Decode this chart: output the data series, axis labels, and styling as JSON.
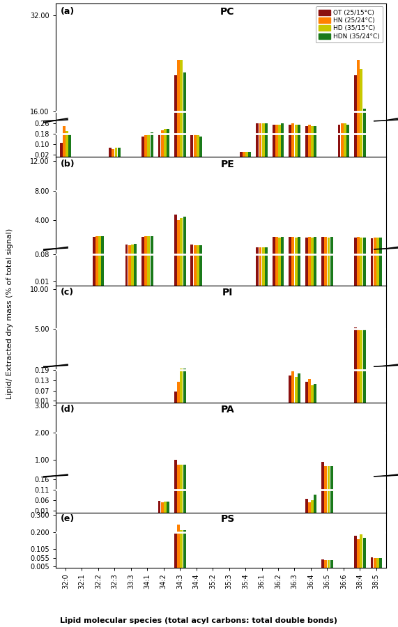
{
  "categories": [
    "32:0",
    "32:1",
    "32:2",
    "32:3",
    "33:3",
    "34:1",
    "34:2",
    "34:3",
    "34:4",
    "35:2",
    "35:3",
    "35:4",
    "36:1",
    "36:2",
    "36:3",
    "36:4",
    "36:5",
    "36:6",
    "38:4",
    "38:5"
  ],
  "colors": [
    "#8B1010",
    "#FF8000",
    "#C8C800",
    "#1A7A1A"
  ],
  "legend_labels": [
    "OT (25/15°C)",
    "HN (25/24°C)",
    "HD (35/15°C)",
    "HDN (35/24°C)"
  ],
  "xlabel": "Lipid molecular species (total acyl carbons: total double bonds)",
  "ylabel": "Lipid/ Extracted dry mass (% of total signal)",
  "panels": [
    {
      "label": "(a)",
      "title": "PC",
      "vals": {
        "32:0": [
          0.11,
          0.24,
          0.2,
          0.18
        ],
        "32:1": [
          0.0,
          0.0,
          0.0,
          0.0
        ],
        "32:2": [
          0.0,
          0.0,
          0.0,
          0.0
        ],
        "32:3": [
          0.07,
          0.06,
          0.07,
          0.07
        ],
        "33:3": [
          0.0,
          0.0,
          0.0,
          0.0
        ],
        "34:1": [
          0.16,
          0.17,
          0.18,
          0.19
        ],
        "34:2": [
          0.18,
          0.21,
          0.22,
          0.22
        ],
        "34:3": [
          22.0,
          24.5,
          24.5,
          22.5
        ],
        "34:4": [
          0.17,
          0.18,
          0.17,
          0.16
        ],
        "35:2": [
          0.0,
          0.0,
          0.0,
          0.0
        ],
        "35:3": [
          0.0,
          0.0,
          0.0,
          0.0
        ],
        "35:4": [
          0.04,
          0.04,
          0.04,
          0.04
        ],
        "36:1": [
          0.26,
          0.26,
          0.26,
          0.26
        ],
        "36:2": [
          0.25,
          0.25,
          0.25,
          0.26
        ],
        "36:3": [
          0.25,
          0.26,
          0.25,
          0.25
        ],
        "36:4": [
          0.24,
          0.25,
          0.24,
          0.24
        ],
        "36:5": [
          0.0,
          0.0,
          0.0,
          0.0
        ],
        "36:6": [
          0.25,
          0.26,
          0.26,
          0.25
        ],
        "38:4": [
          22.0,
          24.5,
          23.0,
          16.5
        ],
        "38:5": [
          0.0,
          0.0,
          0.0,
          0.0
        ]
      },
      "has_break": true,
      "ylim_lo": [
        0.0,
        0.285
      ],
      "ylim_hi": [
        14.5,
        34.0
      ],
      "yticks_lo": [
        0.02,
        0.1,
        0.18,
        0.26
      ],
      "yticks_hi": [
        16.0,
        32.0
      ],
      "hline_lo": 0.18,
      "hline_hi": 16.0,
      "hi_ratio": 3.2,
      "lo_ratio": 1.0
    },
    {
      "label": "(b)",
      "title": "PE",
      "vals": {
        "32:0": [
          0.0,
          0.0,
          0.0,
          0.0
        ],
        "32:1": [
          0.0,
          0.0,
          0.0,
          0.0
        ],
        "32:2": [
          1.75,
          1.9,
          1.85,
          1.9
        ],
        "32:3": [
          0.0,
          0.0,
          0.0,
          0.0
        ],
        "33:3": [
          0.75,
          0.68,
          0.78,
          0.85
        ],
        "34:1": [
          1.75,
          1.85,
          1.85,
          1.9
        ],
        "34:2": [
          0.0,
          0.0,
          0.0,
          0.0
        ],
        "34:3": [
          4.8,
          4.0,
          4.3,
          4.5
        ],
        "34:4": [
          0.75,
          0.65,
          0.68,
          0.7
        ],
        "35:2": [
          0.0,
          0.0,
          0.0,
          0.0
        ],
        "35:3": [
          0.0,
          0.0,
          0.0,
          0.0
        ],
        "35:4": [
          0.0,
          0.0,
          0.0,
          0.0
        ],
        "36:1": [
          0.4,
          0.35,
          0.4,
          0.4
        ],
        "36:2": [
          1.75,
          1.75,
          1.7,
          1.75
        ],
        "36:3": [
          1.75,
          1.75,
          1.7,
          1.75
        ],
        "36:4": [
          1.7,
          1.75,
          1.7,
          1.75
        ],
        "36:5": [
          1.75,
          1.75,
          1.7,
          1.75
        ],
        "36:6": [
          0.0,
          0.0,
          0.0,
          0.0
        ],
        "38:4": [
          1.7,
          1.75,
          1.7,
          1.7
        ],
        "38:5": [
          1.6,
          1.7,
          1.65,
          1.65
        ]
      },
      "has_break": true,
      "ylim_lo": [
        0.0,
        0.095
      ],
      "ylim_hi": [
        0.2,
        12.5
      ],
      "yticks_lo": [
        0.01,
        0.08
      ],
      "yticks_hi": [
        4.0,
        8.0,
        12.0
      ],
      "hline_lo": 0.08,
      "hline_hi": 8.0,
      "hi_ratio": 2.5,
      "lo_ratio": 1.0
    },
    {
      "label": "(c)",
      "title": "PI",
      "vals": {
        "32:0": [
          0.0,
          0.0,
          0.0,
          0.0
        ],
        "32:1": [
          0.0,
          0.0,
          0.0,
          0.0
        ],
        "32:2": [
          0.0,
          0.0,
          0.0,
          0.0
        ],
        "32:3": [
          0.0,
          0.0,
          0.0,
          0.0
        ],
        "33:3": [
          0.0,
          0.0,
          0.0,
          0.0
        ],
        "34:1": [
          0.0,
          0.0,
          0.0,
          0.0
        ],
        "34:2": [
          0.0,
          0.0,
          0.0,
          0.0
        ],
        "34:3": [
          0.065,
          0.12,
          0.2,
          0.2
        ],
        "34:4": [
          0.0,
          0.0,
          0.0,
          0.0
        ],
        "35:2": [
          0.0,
          0.0,
          0.0,
          0.0
        ],
        "35:3": [
          0.0,
          0.0,
          0.0,
          0.0
        ],
        "35:4": [
          0.0,
          0.0,
          0.0,
          0.0
        ],
        "36:1": [
          0.0,
          0.0,
          0.0,
          0.0
        ],
        "36:2": [
          0.0,
          0.0,
          0.0,
          0.0
        ],
        "36:3": [
          0.16,
          0.19,
          0.15,
          0.17
        ],
        "36:4": [
          0.12,
          0.14,
          0.1,
          0.11
        ],
        "36:5": [
          0.0,
          0.0,
          0.0,
          0.0
        ],
        "36:6": [
          0.0,
          0.0,
          0.0,
          0.0
        ],
        "38:4": [
          5.2,
          5.0,
          4.8,
          5.0
        ],
        "38:5": [
          0.0,
          0.0,
          0.0,
          0.0
        ]
      },
      "has_break": true,
      "ylim_lo": [
        0.0,
        0.215
      ],
      "ylim_hi": [
        0.3,
        10.5
      ],
      "yticks_lo": [
        0.01,
        0.07,
        0.13,
        0.19
      ],
      "yticks_hi": [
        5.0,
        10.0
      ],
      "hline_lo": 0.19,
      "hline_hi": 5.0,
      "hi_ratio": 2.2,
      "lo_ratio": 1.0
    },
    {
      "label": "(d)",
      "title": "PA",
      "vals": {
        "32:0": [
          0.0,
          0.0,
          0.0,
          0.0
        ],
        "32:1": [
          0.0,
          0.0,
          0.0,
          0.0
        ],
        "32:2": [
          0.0,
          0.0,
          0.0,
          0.0
        ],
        "32:3": [
          0.0,
          0.0,
          0.0,
          0.0
        ],
        "33:3": [
          0.0,
          0.0,
          0.0,
          0.0
        ],
        "34:1": [
          0.0,
          0.0,
          0.0,
          0.0
        ],
        "34:2": [
          0.055,
          0.05,
          0.052,
          0.052
        ],
        "34:3": [
          1.0,
          0.82,
          0.82,
          0.82
        ],
        "34:4": [
          0.0,
          0.0,
          0.0,
          0.0
        ],
        "35:2": [
          0.0,
          0.0,
          0.0,
          0.0
        ],
        "35:3": [
          0.0,
          0.0,
          0.0,
          0.0
        ],
        "35:4": [
          0.0,
          0.0,
          0.0,
          0.0
        ],
        "36:1": [
          0.0,
          0.0,
          0.0,
          0.0
        ],
        "36:2": [
          0.0,
          0.0,
          0.0,
          0.0
        ],
        "36:3": [
          0.0,
          0.0,
          0.0,
          0.0
        ],
        "36:4": [
          0.065,
          0.05,
          0.06,
          0.085
        ],
        "36:5": [
          0.92,
          0.76,
          0.76,
          0.76
        ],
        "36:6": [
          0.0,
          0.0,
          0.0,
          0.0
        ],
        "38:4": [
          0.0,
          0.0,
          0.0,
          0.0
        ],
        "38:5": [
          0.0,
          0.0,
          0.0,
          0.0
        ]
      },
      "has_break": true,
      "ylim_lo": [
        0.0,
        0.175
      ],
      "ylim_hi": [
        0.4,
        3.1
      ],
      "yticks_lo": [
        0.01,
        0.06,
        0.11,
        0.16
      ],
      "yticks_hi": [
        1.0,
        2.0,
        3.0
      ],
      "hline_lo": 0.11,
      "hline_hi": 2.0,
      "hi_ratio": 2.0,
      "lo_ratio": 1.0
    },
    {
      "label": "(e)",
      "title": "PS",
      "vals": {
        "32:0": [
          0.0,
          0.0,
          0.0,
          0.0
        ],
        "32:1": [
          0.0,
          0.0,
          0.0,
          0.0
        ],
        "32:2": [
          0.0,
          0.0,
          0.0,
          0.0
        ],
        "32:3": [
          0.0,
          0.0,
          0.0,
          0.0
        ],
        "33:3": [
          0.0,
          0.0,
          0.0,
          0.0
        ],
        "34:1": [
          0.0,
          0.0,
          0.0,
          0.0
        ],
        "34:2": [
          0.0,
          0.0,
          0.0,
          0.0
        ],
        "34:3": [
          0.2,
          0.245,
          0.215,
          0.215
        ],
        "34:4": [
          0.0,
          0.0,
          0.0,
          0.0
        ],
        "35:2": [
          0.0,
          0.0,
          0.0,
          0.0
        ],
        "35:3": [
          0.0,
          0.0,
          0.0,
          0.0
        ],
        "35:4": [
          0.0,
          0.0,
          0.0,
          0.0
        ],
        "36:1": [
          0.0,
          0.0,
          0.0,
          0.0
        ],
        "36:2": [
          0.0,
          0.0,
          0.0,
          0.0
        ],
        "36:3": [
          0.0,
          0.0,
          0.0,
          0.0
        ],
        "36:4": [
          0.0,
          0.0,
          0.0,
          0.0
        ],
        "36:5": [
          0.044,
          0.04,
          0.04,
          0.04
        ],
        "36:6": [
          0.0,
          0.0,
          0.0,
          0.0
        ],
        "38:4": [
          0.18,
          0.16,
          0.19,
          0.17
        ],
        "38:5": [
          0.058,
          0.052,
          0.052,
          0.052
        ]
      },
      "has_break": false,
      "ylim_lo": [
        0.0,
        0.315
      ],
      "ylim_hi": [],
      "yticks_lo": [
        0.005,
        0.055,
        0.105,
        0.2,
        0.3
      ],
      "yticks_hi": [],
      "hline_lo": 0.2,
      "hline_hi": 0.0,
      "hi_ratio": 0.0,
      "lo_ratio": 1.0
    }
  ]
}
